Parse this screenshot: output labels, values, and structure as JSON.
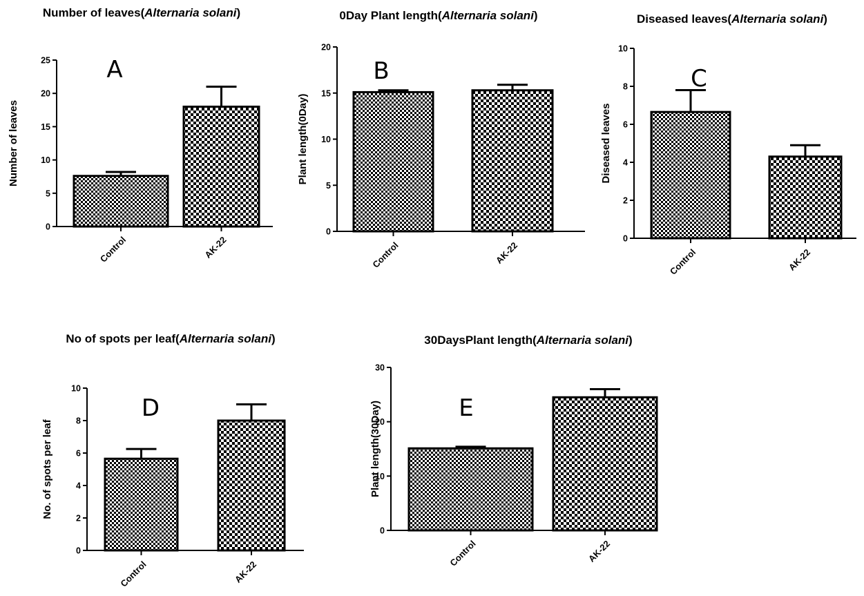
{
  "chart_data": [
    {
      "type": "bar",
      "panel_letter": "A",
      "title": "Number of leaves(",
      "title_italic": "Alternaria solani",
      "title_end": ")",
      "ylabel": "Number of leaves",
      "ylim": [
        0,
        25
      ],
      "yticks": [
        0,
        5,
        10,
        15,
        20,
        25
      ],
      "categories": [
        "Control",
        "AK-22"
      ],
      "values": [
        7.6,
        18.0
      ],
      "errors": [
        0.6,
        3.0
      ]
    },
    {
      "type": "bar",
      "panel_letter": "B",
      "title": "0Day Plant length(",
      "title_italic": "Alternaria solani",
      "title_end": ")",
      "ylabel": "Plant length(0Day)",
      "ylim": [
        0,
        20
      ],
      "yticks": [
        0,
        5,
        10,
        15,
        20
      ],
      "categories": [
        "Control",
        "AK-22"
      ],
      "values": [
        15.1,
        15.3
      ],
      "errors": [
        0.2,
        0.6
      ]
    },
    {
      "type": "bar",
      "panel_letter": "C",
      "title": "Diseased leaves(",
      "title_italic": "Alternaria solani",
      "title_end": ")",
      "ylabel": "Diseased leaves",
      "ylim": [
        0,
        10
      ],
      "yticks": [
        0,
        2,
        4,
        6,
        8,
        10
      ],
      "categories": [
        "Control",
        "AK-22"
      ],
      "values": [
        6.65,
        4.3
      ],
      "errors": [
        1.15,
        0.6
      ]
    },
    {
      "type": "bar",
      "panel_letter": "D",
      "title": "No of spots per leaf(",
      "title_italic": "Alternaria solani",
      "title_end": ")",
      "ylabel": "No. of spots per leaf",
      "ylim": [
        0,
        10
      ],
      "yticks": [
        0,
        2,
        4,
        6,
        8,
        10
      ],
      "categories": [
        "Control",
        "AK-22"
      ],
      "values": [
        5.65,
        8.0
      ],
      "errors": [
        0.6,
        1.0
      ]
    },
    {
      "type": "bar",
      "panel_letter": "E",
      "title": "30DaysPlant length(",
      "title_italic": "Alternaria solani",
      "title_end": ")",
      "ylabel": "Plant length(30Day)",
      "ylim": [
        0,
        30
      ],
      "yticks": [
        0,
        10,
        20,
        30
      ],
      "categories": [
        "Control",
        "AK-22"
      ],
      "values": [
        15.1,
        24.5
      ],
      "errors": [
        0.3,
        1.5
      ]
    }
  ]
}
